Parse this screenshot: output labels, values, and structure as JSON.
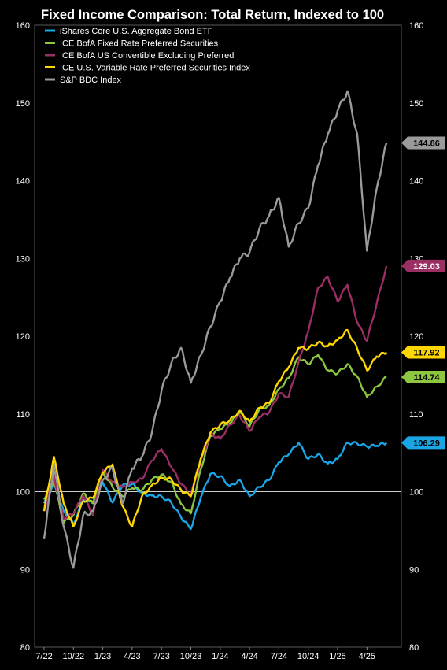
{
  "chart_data": {
    "type": "line",
    "title": "Fixed Income Comparison: Total Return, Indexed to 100",
    "xlabel": "",
    "ylabel": "",
    "x_ticks": [
      "7/22",
      "10/22",
      "1/23",
      "4/23",
      "7/23",
      "10/23",
      "1/24",
      "4/24",
      "7/24",
      "10/24",
      "1/25",
      "4/25"
    ],
    "ylim": [
      80,
      160
    ],
    "y_ticks": [
      80,
      90,
      100,
      110,
      120,
      130,
      140,
      150,
      160
    ],
    "y_axis_sides": "left and right",
    "reference_line": 100,
    "grid": false,
    "legend_position": "top-left",
    "series": [
      {
        "name": "iShares Core U.S. Aggregate Bond ETF",
        "color": "#1aa5e6",
        "end_label": "106.29",
        "values": [
          [
            "7/22",
            98.5
          ],
          [
            "8/22",
            101
          ],
          [
            "9/22",
            97.5
          ],
          [
            "10/22",
            95.8
          ],
          [
            "11/22",
            99
          ],
          [
            "12/22",
            98.5
          ],
          [
            "1/23",
            101.2
          ],
          [
            "2/23",
            98.6
          ],
          [
            "3/23",
            100.8
          ],
          [
            "4/23",
            101
          ],
          [
            "5/23",
            99.8
          ],
          [
            "6/23",
            99.5
          ],
          [
            "7/23",
            99.4
          ],
          [
            "8/23",
            98.6
          ],
          [
            "9/23",
            96.7
          ],
          [
            "10/23",
            95.2
          ],
          [
            "11/23",
            99.2
          ],
          [
            "12/23",
            102.3
          ],
          [
            "1/24",
            102
          ],
          [
            "2/24",
            100.7
          ],
          [
            "3/24",
            101.5
          ],
          [
            "4/24",
            99.4
          ],
          [
            "5/24",
            100.6
          ],
          [
            "6/24",
            101.5
          ],
          [
            "7/24",
            103.8
          ],
          [
            "8/24",
            104.8
          ],
          [
            "9/24",
            106.3
          ],
          [
            "10/24",
            104.2
          ],
          [
            "11/24",
            104.8
          ],
          [
            "12/24",
            103.6
          ],
          [
            "1/25",
            104.2
          ],
          [
            "2/25",
            106.3
          ],
          [
            "3/25",
            106.2
          ],
          [
            "4/25",
            105.8
          ],
          [
            "5/25",
            105.9
          ],
          [
            "6/25",
            106.29
          ]
        ]
      },
      {
        "name": "ICE BofA Fixed Rate Preferred Securities",
        "color": "#8dc63f",
        "end_label": "114.74",
        "values": [
          [
            "7/22",
            99
          ],
          [
            "8/22",
            101.5
          ],
          [
            "9/22",
            96
          ],
          [
            "10/22",
            97
          ],
          [
            "11/22",
            99.8
          ],
          [
            "12/22",
            98.5
          ],
          [
            "1/23",
            102.5
          ],
          [
            "2/23",
            100.6
          ],
          [
            "3/23",
            99.4
          ],
          [
            "4/23",
            100.5
          ],
          [
            "5/23",
            100.2
          ],
          [
            "6/23",
            101.5
          ],
          [
            "7/23",
            102.2
          ],
          [
            "8/23",
            101.2
          ],
          [
            "9/23",
            98.4
          ],
          [
            "10/23",
            97.2
          ],
          [
            "11/23",
            102.8
          ],
          [
            "12/23",
            107.2
          ],
          [
            "1/24",
            108.1
          ],
          [
            "2/24",
            108.8
          ],
          [
            "3/24",
            110.3
          ],
          [
            "4/24",
            108.4
          ],
          [
            "5/24",
            110.6
          ],
          [
            "6/24",
            111.1
          ],
          [
            "7/24",
            113.2
          ],
          [
            "8/24",
            114.6
          ],
          [
            "9/24",
            117.3
          ],
          [
            "10/24",
            116.4
          ],
          [
            "11/24",
            117.6
          ],
          [
            "12/24",
            115.6
          ],
          [
            "1/25",
            115.2
          ],
          [
            "2/25",
            116.4
          ],
          [
            "3/25",
            114.8
          ],
          [
            "4/25",
            112.2
          ],
          [
            "5/25",
            113.5
          ],
          [
            "6/25",
            114.74
          ]
        ]
      },
      {
        "name": "ICE BofA US Convertible Excluding Preferred",
        "color": "#9b2e62",
        "end_label": "129.03",
        "values": [
          [
            "7/22",
            97.5
          ],
          [
            "8/22",
            102
          ],
          [
            "9/22",
            96.5
          ],
          [
            "10/22",
            97.2
          ],
          [
            "11/22",
            99.5
          ],
          [
            "12/22",
            97
          ],
          [
            "1/23",
            102.8
          ],
          [
            "2/23",
            101.2
          ],
          [
            "3/23",
            100.6
          ],
          [
            "4/23",
            101.2
          ],
          [
            "5/23",
            101.6
          ],
          [
            "6/23",
            104
          ],
          [
            "7/23",
            105.5
          ],
          [
            "8/23",
            103.2
          ],
          [
            "9/23",
            101
          ],
          [
            "10/23",
            99.6
          ],
          [
            "11/23",
            103.8
          ],
          [
            "12/23",
            107.5
          ],
          [
            "1/24",
            106.8
          ],
          [
            "2/24",
            108.6
          ],
          [
            "3/24",
            109.8
          ],
          [
            "4/24",
            107.8
          ],
          [
            "5/24",
            109.6
          ],
          [
            "6/24",
            110.2
          ],
          [
            "7/24",
            112.6
          ],
          [
            "8/24",
            112.2
          ],
          [
            "9/24",
            116.6
          ],
          [
            "10/24",
            120.6
          ],
          [
            "11/24",
            126.2
          ],
          [
            "12/24",
            127.6
          ],
          [
            "1/25",
            124.5
          ],
          [
            "2/25",
            126.6
          ],
          [
            "3/25",
            121.8
          ],
          [
            "4/25",
            119.4
          ],
          [
            "5/25",
            124.2
          ],
          [
            "6/25",
            129.03
          ]
        ]
      },
      {
        "name": "ICE U.S. Variable Rate Preferred Securities Index",
        "color": "#ffd700",
        "end_label": "117.92",
        "values": [
          [
            "7/22",
            97.5
          ],
          [
            "8/22",
            104.5
          ],
          [
            "9/22",
            98.5
          ],
          [
            "10/22",
            95.5
          ],
          [
            "11/22",
            98.8
          ],
          [
            "12/22",
            99.2
          ],
          [
            "1/23",
            102.5
          ],
          [
            "2/23",
            103.5
          ],
          [
            "3/23",
            98.2
          ],
          [
            "4/23",
            95.5
          ],
          [
            "5/23",
            99.4
          ],
          [
            "6/23",
            100.8
          ],
          [
            "7/23",
            101.8
          ],
          [
            "8/23",
            101.6
          ],
          [
            "9/23",
            100.2
          ],
          [
            "10/23",
            99.4
          ],
          [
            "11/23",
            104.2
          ],
          [
            "12/23",
            107.6
          ],
          [
            "1/24",
            108.6
          ],
          [
            "2/24",
            109.2
          ],
          [
            "3/24",
            110.4
          ],
          [
            "4/24",
            109
          ],
          [
            "5/24",
            110.8
          ],
          [
            "6/24",
            111.4
          ],
          [
            "7/24",
            114.2
          ],
          [
            "8/24",
            116
          ],
          [
            "9/24",
            118.5
          ],
          [
            "10/24",
            118.4
          ],
          [
            "11/24",
            119.2
          ],
          [
            "12/24",
            118.7
          ],
          [
            "1/25",
            119.5
          ],
          [
            "2/25",
            120.8
          ],
          [
            "3/25",
            118.4
          ],
          [
            "4/25",
            115.6
          ],
          [
            "5/25",
            117.4
          ],
          [
            "6/25",
            117.92
          ]
        ]
      },
      {
        "name": "S&P BDC Index",
        "color": "#9a9a9a",
        "end_label": "144.86",
        "values": [
          [
            "7/22",
            94
          ],
          [
            "8/22",
            103.5
          ],
          [
            "9/22",
            95.5
          ],
          [
            "10/22",
            90.2
          ],
          [
            "11/22",
            97
          ],
          [
            "12/22",
            97.5
          ],
          [
            "1/23",
            101.5
          ],
          [
            "2/23",
            103
          ],
          [
            "3/23",
            98.5
          ],
          [
            "4/23",
            103
          ],
          [
            "5/23",
            104.5
          ],
          [
            "6/23",
            107.5
          ],
          [
            "7/23",
            113
          ],
          [
            "8/23",
            116.5
          ],
          [
            "9/23",
            118.5
          ],
          [
            "10/23",
            114
          ],
          [
            "11/23",
            117.5
          ],
          [
            "12/23",
            121.2
          ],
          [
            "1/24",
            124.5
          ],
          [
            "2/24",
            127.5
          ],
          [
            "3/24",
            130
          ],
          [
            "4/24",
            130.8
          ],
          [
            "5/24",
            133.8
          ],
          [
            "6/24",
            135.5
          ],
          [
            "7/24",
            137.8
          ],
          [
            "8/24",
            131.5
          ],
          [
            "9/24",
            134.5
          ],
          [
            "10/24",
            136.5
          ],
          [
            "11/24",
            142
          ],
          [
            "12/24",
            146
          ],
          [
            "1/25",
            149
          ],
          [
            "2/25",
            151.5
          ],
          [
            "3/25",
            146
          ],
          [
            "4/25",
            131
          ],
          [
            "5/25",
            139
          ],
          [
            "6/25",
            144.86
          ]
        ]
      }
    ]
  }
}
